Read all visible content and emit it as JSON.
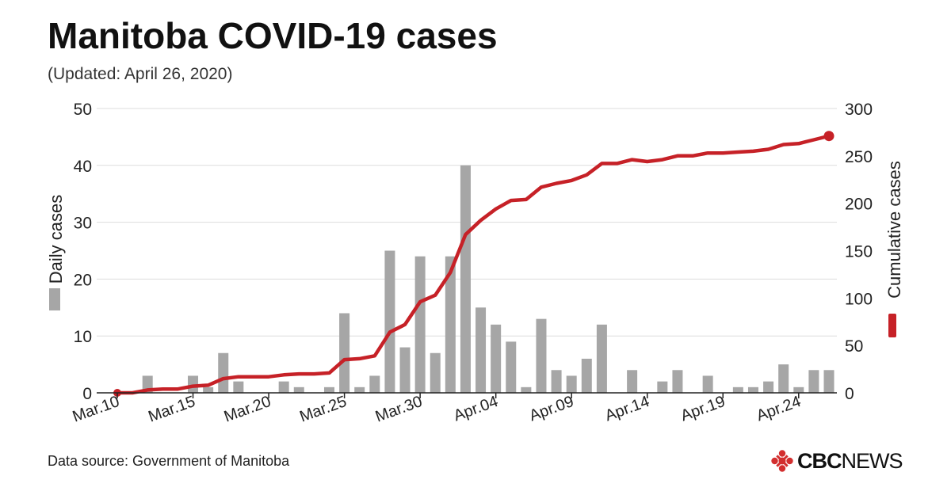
{
  "title": "Manitoba COVID-19 cases",
  "subtitle": "(Updated: April 26, 2020)",
  "source": "Data source: Government of Manitoba",
  "brand": {
    "text_bold": "CBC",
    "text_light": "NEWS",
    "icon": "cbc-gem-icon",
    "color": "#111111",
    "accent": "#d32f2f"
  },
  "colors": {
    "bar": "#a6a6a6",
    "line": "#c62127",
    "grid": "#dddddd",
    "axis": "#222222"
  },
  "chart_data": {
    "type": "bar+line",
    "categories": [
      "Mar.10",
      "Mar.11",
      "Mar.12",
      "Mar.13",
      "Mar.14",
      "Mar.15",
      "Mar.16",
      "Mar.17",
      "Mar.18",
      "Mar.19",
      "Mar.20",
      "Mar.21",
      "Mar.22",
      "Mar.23",
      "Mar.24",
      "Mar.25",
      "Mar.26",
      "Mar.27",
      "Mar.28",
      "Mar.29",
      "Mar.30",
      "Mar.31",
      "Apr.01",
      "Apr.02",
      "Apr.03",
      "Apr.04",
      "Apr.05",
      "Apr.06",
      "Apr.07",
      "Apr.08",
      "Apr.09",
      "Apr.10",
      "Apr.11",
      "Apr.12",
      "Apr.13",
      "Apr.14",
      "Apr.15",
      "Apr.16",
      "Apr.17",
      "Apr.18",
      "Apr.19",
      "Apr.20",
      "Apr.21",
      "Apr.22",
      "Apr.23",
      "Apr.24",
      "Apr.25",
      "Apr.26"
    ],
    "tick_labels": [
      "Mar.10",
      "Mar.15",
      "Mar.20",
      "Mar.25",
      "Mar.30",
      "Apr.04",
      "Apr.09",
      "Apr.14",
      "Apr.19",
      "Apr.24"
    ],
    "tick_indices": [
      0,
      5,
      10,
      15,
      20,
      25,
      30,
      35,
      40,
      45
    ],
    "series": [
      {
        "name": "Daily cases",
        "type": "bar",
        "axis": "left",
        "values": [
          0,
          0,
          3,
          0,
          0,
          3,
          1,
          7,
          2,
          0,
          0,
          2,
          1,
          0,
          1,
          14,
          1,
          3,
          25,
          8,
          24,
          7,
          24,
          40,
          15,
          12,
          9,
          1,
          13,
          4,
          3,
          6,
          12,
          0,
          4,
          0,
          2,
          4,
          0,
          3,
          0,
          1,
          1,
          2,
          5,
          1,
          4,
          4
        ]
      },
      {
        "name": "Cumulative cases",
        "type": "line",
        "axis": "right",
        "values": [
          0,
          0,
          3,
          4,
          4,
          7,
          8,
          15,
          17,
          17,
          17,
          19,
          20,
          20,
          21,
          35,
          36,
          39,
          64,
          72,
          96,
          103,
          127,
          167,
          182,
          194,
          203,
          204,
          217,
          221,
          224,
          230,
          242,
          242,
          246,
          244,
          246,
          250,
          250,
          253,
          253,
          254,
          255,
          257,
          262,
          263,
          267,
          271
        ]
      }
    ],
    "ylabel_left": "Daily cases",
    "ylabel_right": "Cumulative cases",
    "ylim_left": [
      0,
      50
    ],
    "ylim_right": [
      0,
      300
    ],
    "yticks_left": [
      0,
      10,
      20,
      30,
      40,
      50
    ],
    "yticks_right": [
      0,
      50,
      100,
      150,
      200,
      250,
      300
    ],
    "grid": true,
    "legend": "inline-with-axis-labels"
  }
}
